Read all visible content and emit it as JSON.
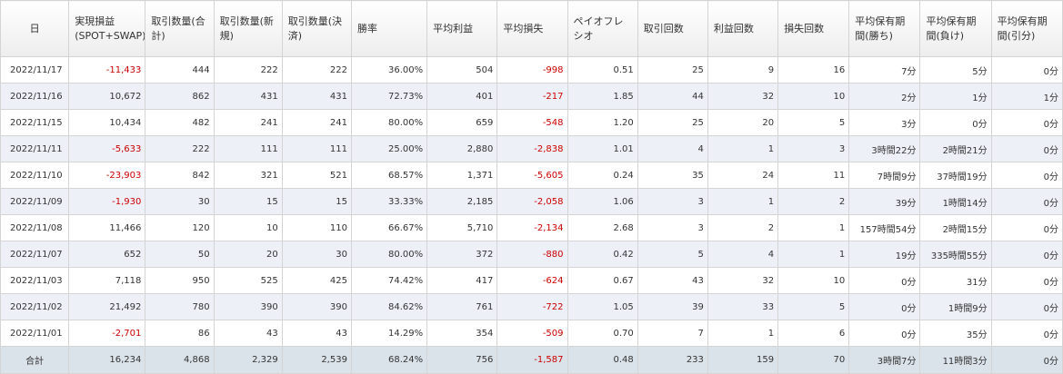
{
  "columns": [
    "日",
    "実現損益(SPOT+SWAP)",
    "取引数量(合計)",
    "取引数量(新規)",
    "取引数量(決済)",
    "勝率",
    "平均利益",
    "平均損失",
    "ペイオフレシオ",
    "取引回数",
    "利益回数",
    "損失回数",
    "平均保有期間(勝ち)",
    "平均保有期間(負け)",
    "平均保有期間(引分)"
  ],
  "rows": [
    {
      "date": "2022/11/17",
      "pnl": "-11,433",
      "qty_total": "444",
      "qty_new": "222",
      "qty_close": "222",
      "win_rate": "36.00%",
      "avg_profit": "504",
      "avg_loss": "-998",
      "payoff": "0.51",
      "trades": "25",
      "wins": "9",
      "losses": "16",
      "hold_win": "7分",
      "hold_loss": "5分",
      "hold_draw": "0分"
    },
    {
      "date": "2022/11/16",
      "pnl": "10,672",
      "qty_total": "862",
      "qty_new": "431",
      "qty_close": "431",
      "win_rate": "72.73%",
      "avg_profit": "401",
      "avg_loss": "-217",
      "payoff": "1.85",
      "trades": "44",
      "wins": "32",
      "losses": "10",
      "hold_win": "2分",
      "hold_loss": "1分",
      "hold_draw": "1分"
    },
    {
      "date": "2022/11/15",
      "pnl": "10,434",
      "qty_total": "482",
      "qty_new": "241",
      "qty_close": "241",
      "win_rate": "80.00%",
      "avg_profit": "659",
      "avg_loss": "-548",
      "payoff": "1.20",
      "trades": "25",
      "wins": "20",
      "losses": "5",
      "hold_win": "3分",
      "hold_loss": "0分",
      "hold_draw": "0分"
    },
    {
      "date": "2022/11/11",
      "pnl": "-5,633",
      "qty_total": "222",
      "qty_new": "111",
      "qty_close": "111",
      "win_rate": "25.00%",
      "avg_profit": "2,880",
      "avg_loss": "-2,838",
      "payoff": "1.01",
      "trades": "4",
      "wins": "1",
      "losses": "3",
      "hold_win": "3時間22分",
      "hold_loss": "2時間21分",
      "hold_draw": "0分"
    },
    {
      "date": "2022/11/10",
      "pnl": "-23,903",
      "qty_total": "842",
      "qty_new": "321",
      "qty_close": "521",
      "win_rate": "68.57%",
      "avg_profit": "1,371",
      "avg_loss": "-5,605",
      "payoff": "0.24",
      "trades": "35",
      "wins": "24",
      "losses": "11",
      "hold_win": "7時間9分",
      "hold_loss": "37時間19分",
      "hold_draw": "0分"
    },
    {
      "date": "2022/11/09",
      "pnl": "-1,930",
      "qty_total": "30",
      "qty_new": "15",
      "qty_close": "15",
      "win_rate": "33.33%",
      "avg_profit": "2,185",
      "avg_loss": "-2,058",
      "payoff": "1.06",
      "trades": "3",
      "wins": "1",
      "losses": "2",
      "hold_win": "39分",
      "hold_loss": "1時間14分",
      "hold_draw": "0分"
    },
    {
      "date": "2022/11/08",
      "pnl": "11,466",
      "qty_total": "120",
      "qty_new": "10",
      "qty_close": "110",
      "win_rate": "66.67%",
      "avg_profit": "5,710",
      "avg_loss": "-2,134",
      "payoff": "2.68",
      "trades": "3",
      "wins": "2",
      "losses": "1",
      "hold_win": "157時間54分",
      "hold_loss": "2時間15分",
      "hold_draw": "0分"
    },
    {
      "date": "2022/11/07",
      "pnl": "652",
      "qty_total": "50",
      "qty_new": "20",
      "qty_close": "30",
      "win_rate": "80.00%",
      "avg_profit": "372",
      "avg_loss": "-880",
      "payoff": "0.42",
      "trades": "5",
      "wins": "4",
      "losses": "1",
      "hold_win": "19分",
      "hold_loss": "335時間55分",
      "hold_draw": "0分"
    },
    {
      "date": "2022/11/03",
      "pnl": "7,118",
      "qty_total": "950",
      "qty_new": "525",
      "qty_close": "425",
      "win_rate": "74.42%",
      "avg_profit": "417",
      "avg_loss": "-624",
      "payoff": "0.67",
      "trades": "43",
      "wins": "32",
      "losses": "10",
      "hold_win": "0分",
      "hold_loss": "31分",
      "hold_draw": "0分"
    },
    {
      "date": "2022/11/02",
      "pnl": "21,492",
      "qty_total": "780",
      "qty_new": "390",
      "qty_close": "390",
      "win_rate": "84.62%",
      "avg_profit": "761",
      "avg_loss": "-722",
      "payoff": "1.05",
      "trades": "39",
      "wins": "33",
      "losses": "5",
      "hold_win": "0分",
      "hold_loss": "1時間9分",
      "hold_draw": "0分"
    },
    {
      "date": "2022/11/01",
      "pnl": "-2,701",
      "qty_total": "86",
      "qty_new": "43",
      "qty_close": "43",
      "win_rate": "14.29%",
      "avg_profit": "354",
      "avg_loss": "-509",
      "payoff": "0.70",
      "trades": "7",
      "wins": "1",
      "losses": "6",
      "hold_win": "0分",
      "hold_loss": "35分",
      "hold_draw": "0分"
    }
  ],
  "total": {
    "date": "合計",
    "pnl": "16,234",
    "qty_total": "4,868",
    "qty_new": "2,329",
    "qty_close": "2,539",
    "win_rate": "68.24%",
    "avg_profit": "756",
    "avg_loss": "-1,587",
    "payoff": "0.48",
    "trades": "233",
    "wins": "159",
    "losses": "70",
    "hold_win": "3時間7分",
    "hold_loss": "11時間3分",
    "hold_draw": "0分"
  },
  "colors": {
    "negative": "#cc0000",
    "alt_row": "#eef0f8",
    "total_row": "#dbe3ea"
  }
}
